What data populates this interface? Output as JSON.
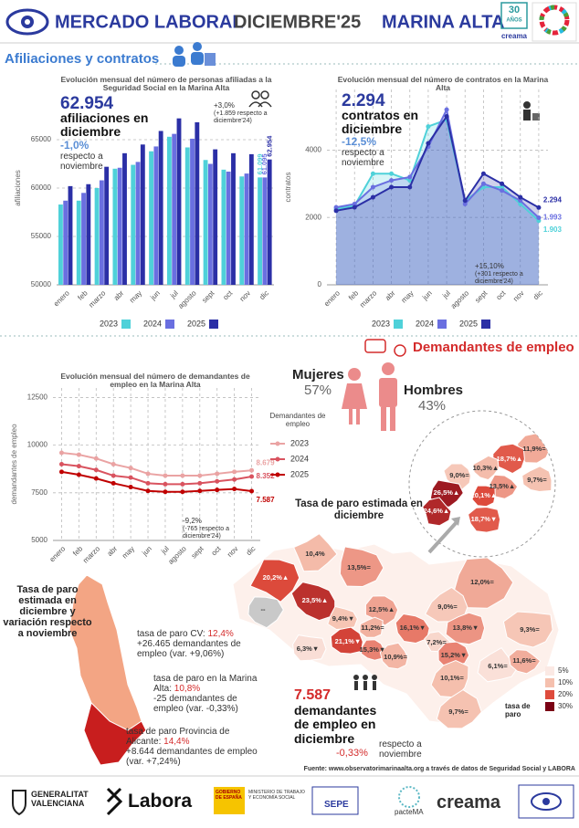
{
  "header": {
    "title_left": "MERCADO LABORAL",
    "title_center": "DICIEMBRE'25",
    "title_right": "MARINA ALTA",
    "badge": "30",
    "badge_sub": "AÑOS",
    "badge_brand": "creama"
  },
  "sections": {
    "afiliaciones": "Afiliaciones y contratos",
    "demandantes": "Demandantes de empleo"
  },
  "chart_data": [
    {
      "type": "bar",
      "title": "Evolución mensual del número de personas afiliadas a la Seguridad Social en la Marina Alta",
      "y_label": "afiliaciones",
      "categories": [
        "enero",
        "feb",
        "marzo",
        "abr",
        "may",
        "jun",
        "jul",
        "agosto",
        "sept",
        "oct",
        "nov",
        "dic"
      ],
      "series": [
        {
          "name": "2023",
          "color": "#4fd1d9",
          "values": [
            58300,
            58700,
            60000,
            62000,
            62400,
            63800,
            65300,
            64200,
            62900,
            61900,
            61200,
            61099
          ],
          "value_labels": [
            null,
            null,
            null,
            null,
            null,
            null,
            null,
            null,
            null,
            null,
            null,
            "61.099"
          ]
        },
        {
          "name": "2024",
          "color": "#6a6fe0",
          "values": [
            58700,
            59500,
            60800,
            62100,
            62700,
            64300,
            65600,
            65100,
            62500,
            61700,
            61500,
            61095
          ],
          "value_labels": [
            null,
            null,
            null,
            null,
            null,
            null,
            null,
            null,
            null,
            null,
            null,
            "61.095"
          ]
        },
        {
          "name": "2025",
          "color": "#2b2fa6",
          "values": [
            60200,
            60400,
            62200,
            63600,
            64500,
            65900,
            67200,
            66800,
            64000,
            63600,
            63500,
            62954
          ],
          "value_labels": [
            null,
            null,
            null,
            null,
            null,
            null,
            null,
            null,
            null,
            null,
            null,
            "62.954"
          ]
        }
      ],
      "ylim": [
        50000,
        70000
      ],
      "yticks": [
        50000,
        55000,
        60000,
        65000
      ],
      "grid": true,
      "legend": "bottom"
    },
    {
      "type": "area",
      "title": "Evolución mensual del número de contratos en la Marina Alta",
      "y_label": "contratos",
      "categories": [
        "enero",
        "feb",
        "marzo",
        "abr",
        "may",
        "jun",
        "jul",
        "agosto",
        "sept",
        "oct",
        "nov",
        "dic"
      ],
      "series": [
        {
          "name": "2023",
          "color": "#4fd1d9",
          "values": [
            2250,
            2350,
            3300,
            3300,
            3100,
            4700,
            4900,
            2500,
            2900,
            2900,
            2400,
            1903
          ],
          "value_labels": [
            null,
            null,
            null,
            null,
            null,
            null,
            null,
            null,
            null,
            null,
            null,
            "1.903"
          ]
        },
        {
          "name": "2024",
          "color": "#6a6fe0",
          "values": [
            2300,
            2400,
            2900,
            3100,
            3200,
            4100,
            5200,
            2400,
            3000,
            2800,
            2500,
            1993
          ],
          "value_labels": [
            null,
            null,
            null,
            null,
            null,
            null,
            null,
            null,
            null,
            null,
            null,
            "1.993"
          ]
        },
        {
          "name": "2025",
          "color": "#2b2fa6",
          "values": [
            2200,
            2300,
            2600,
            2900,
            2900,
            4200,
            5000,
            2500,
            3300,
            3000,
            2600,
            2294
          ],
          "value_labels": [
            null,
            null,
            null,
            null,
            null,
            null,
            null,
            null,
            null,
            null,
            null,
            "2.294"
          ]
        }
      ],
      "ylim": [
        0,
        5800
      ],
      "yticks": [
        0,
        2000,
        4000
      ],
      "grid": true,
      "legend": "bottom"
    },
    {
      "type": "line",
      "title": "Evolución mensual del número de demandantes de empleo en la Marina Alta",
      "y_label": "demandantes de empleo",
      "legend_title": "Demandantes de empleo",
      "categories": [
        "enero",
        "feb",
        "marzo",
        "abr",
        "may",
        "jun",
        "jul",
        "agosto",
        "sept",
        "oct",
        "nov",
        "dic"
      ],
      "series": [
        {
          "name": "2023",
          "color": "#eaa3a3",
          "values": [
            9600,
            9500,
            9300,
            9000,
            8800,
            8500,
            8400,
            8400,
            8400,
            8500,
            8600,
            8679
          ],
          "value_labels": [
            null,
            null,
            null,
            null,
            null,
            null,
            null,
            null,
            null,
            null,
            null,
            "8.679"
          ]
        },
        {
          "name": "2024",
          "color": "#d9535f",
          "values": [
            9000,
            8900,
            8700,
            8400,
            8300,
            8000,
            7950,
            7950,
            8000,
            8100,
            8200,
            8352
          ],
          "value_labels": [
            null,
            null,
            null,
            null,
            null,
            null,
            null,
            null,
            null,
            null,
            null,
            "8.352"
          ]
        },
        {
          "name": "2025",
          "color": "#c00000",
          "values": [
            8600,
            8450,
            8250,
            8000,
            7800,
            7600,
            7550,
            7550,
            7600,
            7650,
            7700,
            7587
          ],
          "value_labels": [
            null,
            null,
            null,
            null,
            null,
            null,
            null,
            null,
            null,
            null,
            null,
            "7.587"
          ]
        }
      ],
      "ylim": [
        5000,
        13000
      ],
      "yticks": [
        5000,
        7500,
        10000,
        12500
      ],
      "grid": true,
      "legend": "right"
    }
  ],
  "afiliaciones_summary": {
    "value": "62.954",
    "label": "afiliaciones en diciembre",
    "monthly_change": "-1,0%",
    "monthly_note": "respecto a noviembre",
    "annual_change": "+3,0%",
    "annual_note": "(+1.859 respecto a diciembre'24)"
  },
  "contratos_summary": {
    "value": "2.294",
    "label": "contratos en diciembre",
    "monthly_change": "-12,5%",
    "monthly_note": "respecto a noviembre",
    "annual_change": "+15,10%",
    "annual_note": "(+301 respecto a diciembre'24)"
  },
  "demandantes_note": {
    "change": "-9,2%",
    "note": "(-765 respecto a diciembre'24)"
  },
  "gender": {
    "women_label": "Mujeres",
    "women_share": "57%",
    "men_label": "Hombres",
    "men_share": "43%"
  },
  "map": {
    "title": "Tasa de paro estimada en diciembre",
    "legend_title": "tasa de paro",
    "legend": [
      {
        "value": 5,
        "label": "5%",
        "color": "#fbe9e4"
      },
      {
        "value": 10,
        "label": "10%",
        "color": "#f5c0ae"
      },
      {
        "value": 20,
        "label": "20%",
        "color": "#de4b3c"
      },
      {
        "value": 30,
        "label": "30%",
        "color": "#7a0014"
      }
    ],
    "regions": [
      {
        "value": 10.4,
        "label": "10,4%"
      },
      {
        "value": 13.5,
        "label": "13,5%="
      },
      {
        "value": 20.2,
        "label": "20,2%▲"
      },
      {
        "value": 23.5,
        "label": "23,5%▲"
      },
      {
        "value": null,
        "label": "--"
      },
      {
        "value": 12.0,
        "label": "12,0%="
      },
      {
        "value": 9.0,
        "label": "9,0%="
      },
      {
        "value": 12.5,
        "label": "12,5%▲"
      },
      {
        "value": 9.4,
        "label": "9,4%▼"
      },
      {
        "value": 11.2,
        "label": "11,2%="
      },
      {
        "value": 16.1,
        "label": "16,1%▼"
      },
      {
        "value": 13.8,
        "label": "13,8%▼"
      },
      {
        "value": 9.3,
        "label": "9,3%="
      },
      {
        "value": 6.3,
        "label": "6,3%▼"
      },
      {
        "value": 21.1,
        "label": "21,1%▼"
      },
      {
        "value": 15.3,
        "label": "15,3%▼"
      },
      {
        "value": 10.9,
        "label": "10,9%="
      },
      {
        "value": 7.2,
        "label": "7,2%="
      },
      {
        "value": 15.2,
        "label": "15,2%▼"
      },
      {
        "value": 6.1,
        "label": "6,1%="
      },
      {
        "value": 11.6,
        "label": "11,6%="
      },
      {
        "value": 10.1,
        "label": "10,1%="
      },
      {
        "value": 9.7,
        "label": "9,7%="
      }
    ],
    "inset_regions": [
      {
        "value": 11.9,
        "label": "11,9%="
      },
      {
        "value": 18.7,
        "label": "18,7%▲"
      },
      {
        "value": 10.3,
        "label": "10,3%▲"
      },
      {
        "value": 9.0,
        "label": "9,0%="
      },
      {
        "value": 13.5,
        "label": "13,5%▲"
      },
      {
        "value": 9.7,
        "label": "9,7%="
      },
      {
        "value": 20.1,
        "label": "20,1%▲"
      },
      {
        "value": 26.5,
        "label": "26,5%▲"
      },
      {
        "value": 24.6,
        "label": "24,6%▲"
      },
      {
        "value": 18.7,
        "label": "18,7%▼"
      }
    ]
  },
  "region_summary": {
    "title": "Tasa de paro estimada en diciembre y variación respecto a noviembre",
    "cv_label": "tasa de paro CV:",
    "cv_rate": "12,4%",
    "cv_detail": "+26.465 demandantes de empleo (var. +9,06%)",
    "ma_label": "tasa de paro en la Marina Alta:",
    "ma_rate": "10,8%",
    "ma_detail": "-25 demandantes de empleo (var. -0,33%)",
    "al_label": "tasa de paro Provincia de Alicante:",
    "al_rate": "14,4%",
    "al_detail": "+8.644 demandantes de empleo (var. +7,24%)"
  },
  "demandantes_summary": {
    "value": "7.587",
    "label": "demandantes de empleo en diciembre",
    "change": "-0,33%",
    "note": "respecto a noviembre"
  },
  "source": "Fuente: www.observatorimarinaalta.org a través de datos de Seguridad Social y LABORA",
  "footer": {
    "logos": [
      "GENERALITAT VALENCIANA",
      "Labora",
      "GOBIERNO DE ESPAÑA",
      "MINISTERIO DE TRABAJO Y ECONOMÍA SOCIAL",
      "SEPE",
      "pacteMA",
      "creama"
    ]
  }
}
